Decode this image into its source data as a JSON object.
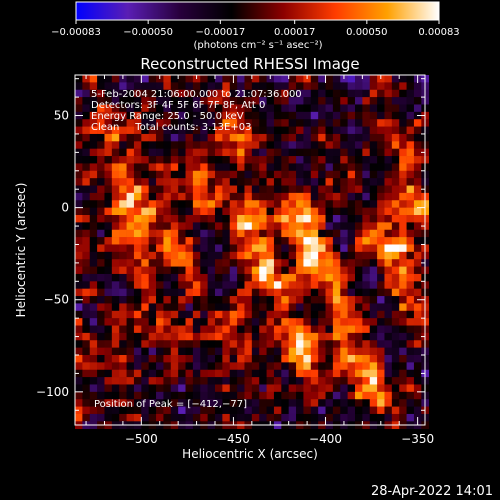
{
  "chart_data": {
    "type": "heatmap",
    "title": "Reconstructed RHESSI Image",
    "xlabel": "Heliocentric X (arcsec)",
    "ylabel": "Heliocentric Y (arcsec)",
    "xlim": [
      -536,
      -346
    ],
    "ylim": [
      -118,
      72
    ],
    "x_ticks": [
      {
        "value": -500,
        "label": "−500"
      },
      {
        "value": -450,
        "label": "−450"
      },
      {
        "value": -400,
        "label": "−400"
      },
      {
        "value": -350,
        "label": "−350"
      }
    ],
    "y_ticks": [
      {
        "value": 50,
        "label": "50"
      },
      {
        "value": 0,
        "label": "0"
      },
      {
        "value": -50,
        "label": "−50"
      },
      {
        "value": -100,
        "label": "−100"
      }
    ],
    "colorbar": {
      "range": [
        -0.00083,
        0.00083
      ],
      "tick_labels": [
        "−0.00083",
        "−0.00050",
        "−0.00017",
        "0.00017",
        "0.00050",
        "0.00083"
      ],
      "tick_values": [
        -0.00083,
        -0.0005,
        -0.00017,
        0.00017,
        0.0005,
        0.00083
      ],
      "unit_label": "(photons cm⁻² s⁻¹ asec⁻²)",
      "colormap": [
        "#0000ff",
        "#5a1eb4",
        "#28003c",
        "#000000",
        "#8c0000",
        "#ff3c00",
        "#ffa000",
        "#ffffff"
      ]
    },
    "annotations": [
      "5-Feb-2004 21:06:00.000 to 21:07:36.000",
      "Detectors: 3F 4F 5F 6F 7F 8F, Att 0",
      "Energy Range: 25.0 - 50.0 keV",
      "Clean     Total counts: 3.13E+03"
    ],
    "peak_label": "Position of Peak = [−412,−77]",
    "peak_position": [
      -412,
      -77
    ],
    "peak_value": 0.00083,
    "sources": [
      {
        "x": -506,
        "y": 5,
        "value": 0.00072
      },
      {
        "x": -508,
        "y": -18,
        "value": 0.00062
      },
      {
        "x": -470,
        "y": 12,
        "value": 0.00052
      },
      {
        "x": -478,
        "y": -24,
        "value": 0.00046
      },
      {
        "x": -448,
        "y": 38,
        "value": 0.00042
      },
      {
        "x": -440,
        "y": -12,
        "value": 0.00068
      },
      {
        "x": -432,
        "y": -38,
        "value": 0.00055
      },
      {
        "x": -414,
        "y": -8,
        "value": 0.0006
      },
      {
        "x": -404,
        "y": -30,
        "value": 0.00065
      },
      {
        "x": -412,
        "y": -77,
        "value": 0.00083
      },
      {
        "x": -390,
        "y": -60,
        "value": 0.00054
      },
      {
        "x": -378,
        "y": -92,
        "value": 0.0007
      },
      {
        "x": -366,
        "y": -20,
        "value": 0.00075
      },
      {
        "x": -352,
        "y": 2,
        "value": 0.00058
      },
      {
        "x": -362,
        "y": 42,
        "value": 0.0004
      },
      {
        "x": -518,
        "y": 40,
        "value": 0.00035
      },
      {
        "x": -495,
        "y": -60,
        "value": 0.0004
      },
      {
        "x": -452,
        "y": -70,
        "value": 0.00038
      },
      {
        "x": -518,
        "y": -85,
        "value": 0.00032
      },
      {
        "x": -350,
        "y": -52,
        "value": 0.00048
      }
    ]
  },
  "footer": {
    "timestamp": "28-Apr-2022 14:01"
  }
}
